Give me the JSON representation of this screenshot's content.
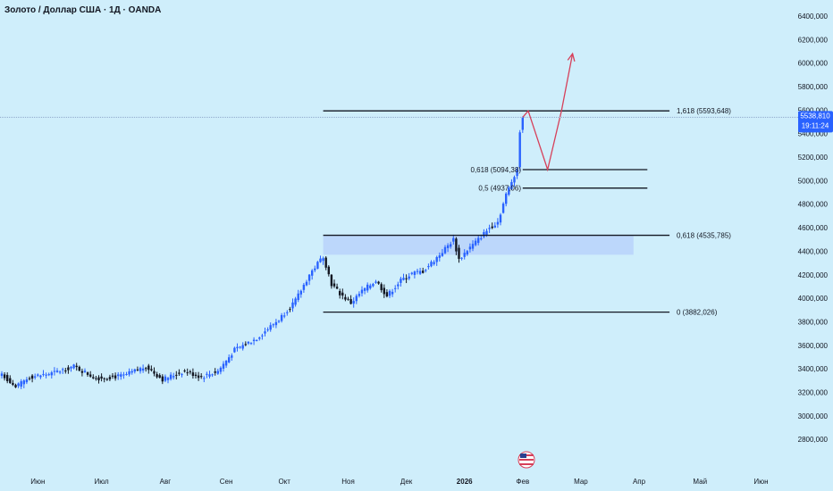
{
  "header": {
    "title": "Золото / Доллар США · 1Д · OANDA"
  },
  "price_badge": {
    "price": "5538,810",
    "countdown": "19:11:24",
    "color": "#2962ff"
  },
  "colors": {
    "up": "#2962ff",
    "down": "#131722",
    "background": "#cfeefb",
    "zone": "#bcd7fb",
    "projection": "#d6405a"
  },
  "chart_data": {
    "type": "candlestick",
    "y_axis": {
      "range": [
        2700000,
        6500000
      ],
      "ticks": [
        {
          "v": 6400000,
          "label": "6400,000"
        },
        {
          "v": 6200000,
          "label": "6200,000"
        },
        {
          "v": 6000000,
          "label": "6000,000"
        },
        {
          "v": 5800000,
          "label": "5800,000"
        },
        {
          "v": 5600000,
          "label": "5600,000"
        },
        {
          "v": 5400000,
          "label": "5400,000"
        },
        {
          "v": 5200000,
          "label": "5200,000"
        },
        {
          "v": 5000000,
          "label": "5000,000"
        },
        {
          "v": 4800000,
          "label": "4800,000"
        },
        {
          "v": 4600000,
          "label": "4600,000"
        },
        {
          "v": 4400000,
          "label": "4400,000"
        },
        {
          "v": 4200000,
          "label": "4200,000"
        },
        {
          "v": 4000000,
          "label": "4000,000"
        },
        {
          "v": 3800000,
          "label": "3800,000"
        },
        {
          "v": 3600000,
          "label": "3600,000"
        },
        {
          "v": 3400000,
          "label": "3400,000"
        },
        {
          "v": 3200000,
          "label": "3200,000"
        },
        {
          "v": 3000000,
          "label": "3000,000"
        },
        {
          "v": 2800000,
          "label": "2800,000"
        }
      ]
    },
    "x_axis": {
      "ticks": [
        {
          "i": 13,
          "label": "Июн"
        },
        {
          "i": 36,
          "label": "Июл"
        },
        {
          "i": 59,
          "label": "Авг"
        },
        {
          "i": 81,
          "label": "Сен"
        },
        {
          "i": 102,
          "label": "Окт"
        },
        {
          "i": 125,
          "label": "Ноя"
        },
        {
          "i": 146,
          "label": "Дек"
        },
        {
          "i": 167,
          "label": "2026"
        },
        {
          "i": 188,
          "label": "Фев"
        },
        {
          "i": 209,
          "label": "Мар"
        },
        {
          "i": 230,
          "label": "Апр"
        },
        {
          "i": 252,
          "label": "Май"
        },
        {
          "i": 274,
          "label": "Июн"
        }
      ]
    },
    "anchors": [
      [
        0,
        3360000
      ],
      [
        5,
        3240000
      ],
      [
        10,
        3330000
      ],
      [
        18,
        3360000
      ],
      [
        26,
        3420000
      ],
      [
        34,
        3320000
      ],
      [
        44,
        3340000
      ],
      [
        52,
        3420000
      ],
      [
        58,
        3310000
      ],
      [
        66,
        3380000
      ],
      [
        72,
        3330000
      ],
      [
        78,
        3380000
      ],
      [
        84,
        3560000
      ],
      [
        92,
        3660000
      ],
      [
        100,
        3820000
      ],
      [
        106,
        3980000
      ],
      [
        111,
        4200000
      ],
      [
        116,
        4360000
      ],
      [
        119,
        4120000
      ],
      [
        122,
        4040000
      ],
      [
        126,
        3960000
      ],
      [
        130,
        4060000
      ],
      [
        135,
        4150000
      ],
      [
        139,
        4020000
      ],
      [
        144,
        4150000
      ],
      [
        148,
        4210000
      ],
      [
        152,
        4230000
      ],
      [
        158,
        4370000
      ],
      [
        163,
        4500000
      ],
      [
        165,
        4330000
      ],
      [
        168,
        4410000
      ],
      [
        172,
        4500000
      ],
      [
        176,
        4600000
      ],
      [
        179,
        4650000
      ],
      [
        182,
        4880000
      ],
      [
        185,
        5050000
      ],
      [
        186,
        5100000
      ],
      [
        187,
        5420000
      ],
      [
        188,
        5538810
      ]
    ],
    "levels": [
      {
        "label": "1,618 (5593,648)",
        "value": 5593648
      },
      {
        "label": "0,618 (5094,38)",
        "value": 5094380
      },
      {
        "label": "0,5 (4937,06)",
        "value": 4937060
      },
      {
        "label": "0,618 (4535,785)",
        "value": 4535785
      },
      {
        "label": "0 (3882,026)",
        "value": 3882026
      }
    ],
    "zone": {
      "top": 4530000,
      "bottom": 4370000
    },
    "last_price": 5538810,
    "projection": [
      {
        "i": 188,
        "v": 5538810
      },
      {
        "i": 190,
        "v": 5593648
      },
      {
        "i": 197,
        "v": 5094380
      },
      {
        "i": 202,
        "v": 5593648
      },
      {
        "i": 206,
        "v": 6080000
      }
    ]
  }
}
